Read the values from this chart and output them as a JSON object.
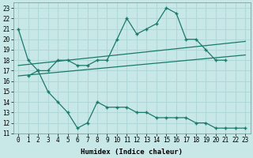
{
  "xlabel": "Humidex (Indice chaleur)",
  "ylabel": "",
  "bg_color": "#c8e8e8",
  "line_color": "#1a7a6a",
  "grid_color": "#b0d8d8",
  "xlim": [
    -0.5,
    23.5
  ],
  "ylim": [
    11,
    23.5
  ],
  "yticks": [
    11,
    12,
    13,
    14,
    15,
    16,
    17,
    18,
    19,
    20,
    21,
    22,
    23
  ],
  "xticks": [
    0,
    1,
    2,
    3,
    4,
    5,
    6,
    7,
    8,
    9,
    10,
    11,
    12,
    13,
    14,
    15,
    16,
    17,
    18,
    19,
    20,
    21,
    22,
    23
  ],
  "line1_x": [
    0,
    1,
    2,
    3,
    4,
    5,
    6,
    7,
    8,
    9,
    10,
    11,
    12,
    13,
    14,
    15,
    16,
    17,
    18,
    19,
    20,
    21
  ],
  "line1_y": [
    21.0,
    18.0,
    17.0,
    17.0,
    18.0,
    18.0,
    17.5,
    17.5,
    18.0,
    18.0,
    20.0,
    22.0,
    20.5,
    21.0,
    21.5,
    23.0,
    22.5,
    20.0,
    20.0,
    19.0,
    18.0,
    18.0
  ],
  "line2_x": [
    1,
    2,
    3,
    4,
    5,
    6,
    7,
    8,
    9,
    10,
    11,
    12,
    13,
    14,
    15,
    16,
    17,
    18,
    19,
    20,
    21,
    22,
    23
  ],
  "line2_y": [
    16.5,
    17.0,
    15.0,
    14.0,
    13.0,
    11.5,
    12.0,
    14.0,
    13.5,
    13.5,
    13.5,
    13.0,
    13.0,
    12.5,
    12.5,
    12.5,
    12.5,
    12.0,
    12.0,
    11.5,
    11.5,
    11.5,
    11.5
  ],
  "trend1_x": [
    0,
    23
  ],
  "trend1_y": [
    17.5,
    19.8
  ],
  "trend2_x": [
    0,
    23
  ],
  "trend2_y": [
    16.5,
    18.5
  ]
}
